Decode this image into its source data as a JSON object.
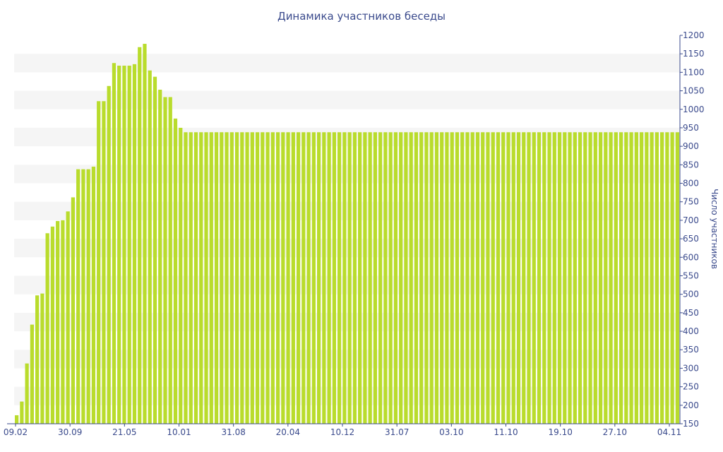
{
  "chart_data": {
    "type": "bar",
    "title": "Динамика участников беседы",
    "xlabel": "",
    "ylabel": "Число участников",
    "ylim": [
      150,
      1200
    ],
    "yticks": [
      150,
      200,
      250,
      300,
      350,
      400,
      450,
      500,
      550,
      600,
      650,
      700,
      750,
      800,
      850,
      900,
      950,
      1000,
      1050,
      1100,
      1150,
      1200
    ],
    "x_tick_labels": [
      "09.02",
      "30.09",
      "21.05",
      "10.01",
      "31.08",
      "20.04",
      "10.12",
      "31.07",
      "03.10",
      "11.10",
      "19.10",
      "27.10",
      "04.11"
    ],
    "grid": "alternating horizontal bands",
    "colors": {
      "bar": "#b9dc2c",
      "text": "#3a4a8c",
      "band": "#f5f5f5",
      "axis": "#3a4a8c"
    },
    "values": [
      173,
      210,
      313,
      418,
      497,
      502,
      665,
      683,
      698,
      700,
      724,
      762,
      838,
      838,
      838,
      845,
      1022,
      1022,
      1063,
      1125,
      1118,
      1118,
      1118,
      1122,
      1168,
      1177,
      1105,
      1088,
      1053,
      1033,
      1033,
      975,
      950,
      938,
      938,
      938,
      938,
      938,
      938,
      938,
      938,
      938,
      938,
      938,
      938,
      938,
      938,
      938,
      938,
      938,
      938,
      938,
      938,
      938,
      938,
      938,
      938,
      938,
      938,
      938,
      938,
      938,
      938,
      938,
      938,
      938,
      938,
      938,
      938,
      938,
      938,
      938,
      938,
      938,
      938,
      938,
      938,
      938,
      938,
      938,
      938,
      938,
      938,
      938,
      938,
      938,
      938,
      938,
      938,
      938,
      938,
      938,
      938,
      938,
      938,
      938,
      938,
      938,
      938,
      938,
      938,
      938,
      938,
      938,
      938,
      938,
      938,
      938,
      938,
      938,
      938,
      938,
      938,
      938,
      938,
      938,
      938,
      938,
      938,
      938,
      938,
      938,
      938,
      938,
      938,
      938,
      938,
      938,
      938,
      938
    ]
  }
}
